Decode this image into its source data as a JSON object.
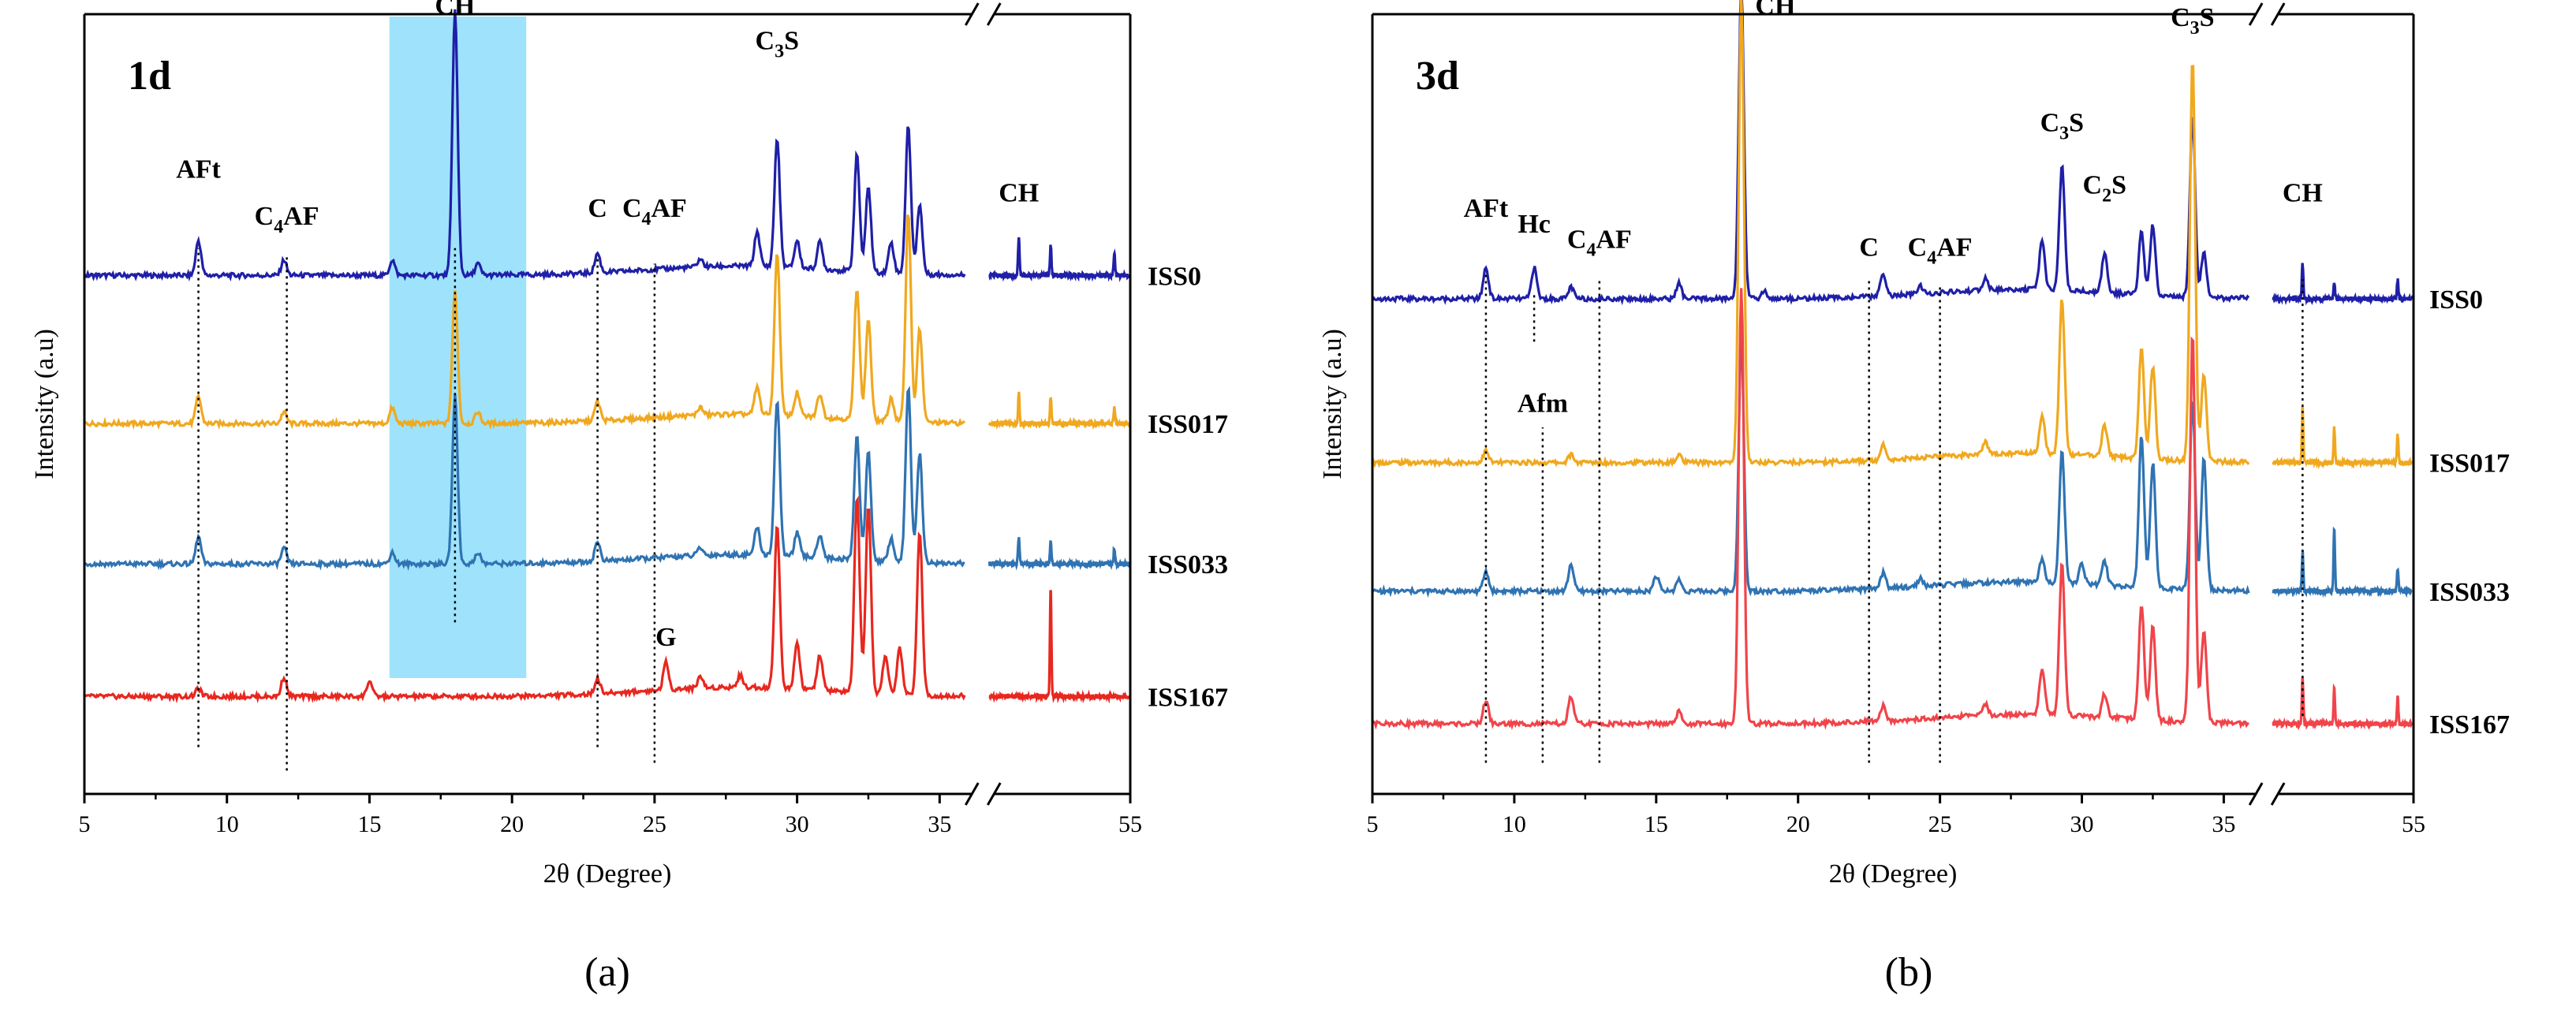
{
  "figure": {
    "panels": [
      "a",
      "b"
    ]
  },
  "chart_data": [
    {
      "type": "line",
      "panel_label": "1d",
      "caption": "(a)",
      "xlabel": "2θ (Degree)",
      "ylabel": "Intensity (a.u)",
      "x_ticks": [
        5,
        10,
        15,
        20,
        25,
        30,
        35,
        55
      ],
      "x_axis_break": [
        36,
        37
      ],
      "xlim": [
        5,
        55
      ],
      "ylim": [
        0,
        1
      ],
      "shaded_region": {
        "x_range": [
          15.7,
          20.5
        ],
        "color": "#9ee3fb"
      },
      "series": [
        {
          "name": "ISS0",
          "color": "#1f1fa8",
          "offset": 0.665,
          "peaks": [
            [
              9.0,
              0.045
            ],
            [
              12.0,
              0.02
            ],
            [
              15.8,
              0.02
            ],
            [
              18.0,
              0.34
            ],
            [
              18.8,
              0.015
            ],
            [
              23.0,
              0.025
            ],
            [
              26.6,
              0.01
            ],
            [
              28.6,
              0.045
            ],
            [
              29.3,
              0.165
            ],
            [
              30.0,
              0.035
            ],
            [
              30.8,
              0.035
            ],
            [
              32.1,
              0.15
            ],
            [
              32.5,
              0.11
            ],
            [
              33.3,
              0.04
            ],
            [
              33.9,
              0.19
            ],
            [
              34.3,
              0.09
            ],
            [
              41,
              0.05
            ],
            [
              45,
              0.04
            ],
            [
              53,
              0.03
            ]
          ]
        },
        {
          "name": "ISS017",
          "color": "#f0a81e",
          "offset": 0.475,
          "peaks": [
            [
              9.0,
              0.035
            ],
            [
              12.0,
              0.015
            ],
            [
              15.8,
              0.02
            ],
            [
              18.0,
              0.17
            ],
            [
              18.8,
              0.015
            ],
            [
              23.0,
              0.025
            ],
            [
              26.6,
              0.01
            ],
            [
              28.6,
              0.035
            ],
            [
              29.3,
              0.21
            ],
            [
              30.0,
              0.03
            ],
            [
              30.8,
              0.03
            ],
            [
              32.1,
              0.17
            ],
            [
              32.5,
              0.13
            ],
            [
              33.3,
              0.03
            ],
            [
              33.9,
              0.27
            ],
            [
              34.3,
              0.12
            ],
            [
              41,
              0.04
            ],
            [
              45,
              0.035
            ],
            [
              53,
              0.02
            ]
          ]
        },
        {
          "name": "ISS033",
          "color": "#2f73b3",
          "offset": 0.295,
          "peaks": [
            [
              9.0,
              0.035
            ],
            [
              12.0,
              0.02
            ],
            [
              15.8,
              0.015
            ],
            [
              18.0,
              0.215
            ],
            [
              18.8,
              0.015
            ],
            [
              23.0,
              0.025
            ],
            [
              26.6,
              0.01
            ],
            [
              28.6,
              0.035
            ],
            [
              29.3,
              0.2
            ],
            [
              30.0,
              0.03
            ],
            [
              30.8,
              0.03
            ],
            [
              32.1,
              0.16
            ],
            [
              32.5,
              0.14
            ],
            [
              33.3,
              0.03
            ],
            [
              33.9,
              0.225
            ],
            [
              34.3,
              0.14
            ],
            [
              41,
              0.035
            ],
            [
              45,
              0.03
            ],
            [
              53,
              0.02
            ]
          ]
        },
        {
          "name": "ISS167",
          "color": "#e8271f",
          "offset": 0.125,
          "peaks": [
            [
              9.0,
              0.01
            ],
            [
              12.0,
              0.025
            ],
            [
              15.0,
              0.02
            ],
            [
              23.0,
              0.02
            ],
            [
              25.4,
              0.035
            ],
            [
              26.6,
              0.015
            ],
            [
              28.0,
              0.015
            ],
            [
              29.3,
              0.21
            ],
            [
              30.0,
              0.06
            ],
            [
              30.8,
              0.045
            ],
            [
              32.1,
              0.25
            ],
            [
              32.5,
              0.24
            ],
            [
              33.1,
              0.05
            ],
            [
              33.6,
              0.06
            ],
            [
              34.3,
              0.21
            ],
            [
              45,
              0.14
            ]
          ]
        }
      ],
      "peak_labels": [
        {
          "text": "AFt",
          "x": 9.0,
          "y": 0.79,
          "guide": [
            0.06,
            0.7
          ]
        },
        {
          "text": "C4AF",
          "main": "C",
          "sub": "4",
          "tail": "AF",
          "x": 12.1,
          "y": 0.73,
          "guide": [
            0.03,
            0.69
          ]
        },
        {
          "text": "CH",
          "x": 18.0,
          "y": 1.0,
          "guide": [
            0.22,
            0.7
          ]
        },
        {
          "text": "C",
          "x": 23.0,
          "y": 0.74,
          "guide": [
            0.06,
            0.69
          ]
        },
        {
          "text": "C4AF",
          "main": "C",
          "sub": "4",
          "tail": "AF",
          "x": 25.0,
          "y": 0.74,
          "guide": [
            0.04,
            0.68
          ]
        },
        {
          "text": "C3S",
          "main": "C",
          "sub": "3",
          "tail": "S",
          "x": 29.3,
          "y": 0.955
        },
        {
          "text": "CH",
          "x": 41.0,
          "y": 0.76
        },
        {
          "text": "G",
          "x": 25.4,
          "y": 0.19
        }
      ]
    },
    {
      "type": "line",
      "panel_label": "3d",
      "caption": "(b)",
      "xlabel": "2θ (Degree)",
      "ylabel": "Intensity (a.u)",
      "x_ticks": [
        5,
        10,
        15,
        20,
        25,
        30,
        35,
        55
      ],
      "x_axis_break": [
        36,
        37
      ],
      "xlim": [
        5,
        55
      ],
      "ylim": [
        0,
        1
      ],
      "series": [
        {
          "name": "ISS0",
          "color": "#1f1fa8",
          "offset": 0.635,
          "peaks": [
            [
              9.0,
              0.04
            ],
            [
              10.7,
              0.04
            ],
            [
              12.0,
              0.015
            ],
            [
              15.8,
              0.02
            ],
            [
              18.0,
              0.4
            ],
            [
              18.8,
              0.01
            ],
            [
              23.0,
              0.03
            ],
            [
              24.3,
              0.01
            ],
            [
              26.6,
              0.015
            ],
            [
              28.6,
              0.065
            ],
            [
              29.3,
              0.16
            ],
            [
              30.8,
              0.05
            ],
            [
              32.1,
              0.08
            ],
            [
              32.5,
              0.09
            ],
            [
              33.9,
              0.235
            ],
            [
              34.3,
              0.06
            ],
            [
              41,
              0.045
            ],
            [
              45,
              0.02
            ],
            [
              53,
              0.025
            ]
          ]
        },
        {
          "name": "ISS017",
          "color": "#f0a81e",
          "offset": 0.425,
          "peaks": [
            [
              9.0,
              0.015
            ],
            [
              12.0,
              0.01
            ],
            [
              15.8,
              0.01
            ],
            [
              18.0,
              0.6
            ],
            [
              23.0,
              0.02
            ],
            [
              26.6,
              0.015
            ],
            [
              28.6,
              0.05
            ],
            [
              29.3,
              0.2
            ],
            [
              30.8,
              0.04
            ],
            [
              32.1,
              0.14
            ],
            [
              32.5,
              0.12
            ],
            [
              33.9,
              0.52
            ],
            [
              34.3,
              0.11
            ],
            [
              41,
              0.07
            ],
            [
              45,
              0.045
            ],
            [
              53,
              0.035
            ]
          ]
        },
        {
          "name": "ISS033",
          "color": "#2f73b3",
          "offset": 0.26,
          "peaks": [
            [
              9.0,
              0.025
            ],
            [
              12.0,
              0.035
            ],
            [
              15.0,
              0.02
            ],
            [
              15.8,
              0.015
            ],
            [
              18.0,
              0.32
            ],
            [
              23.0,
              0.02
            ],
            [
              24.3,
              0.01
            ],
            [
              28.6,
              0.03
            ],
            [
              29.3,
              0.17
            ],
            [
              30.0,
              0.025
            ],
            [
              30.8,
              0.03
            ],
            [
              32.1,
              0.195
            ],
            [
              32.5,
              0.16
            ],
            [
              33.9,
              0.245
            ],
            [
              34.3,
              0.17
            ],
            [
              41,
              0.05
            ],
            [
              45,
              0.08
            ],
            [
              53,
              0.03
            ]
          ]
        },
        {
          "name": "ISS167",
          "color": "#f0444a",
          "offset": 0.09,
          "peaks": [
            [
              9.0,
              0.03
            ],
            [
              12.0,
              0.035
            ],
            [
              15.8,
              0.015
            ],
            [
              18.0,
              0.56
            ],
            [
              23.0,
              0.02
            ],
            [
              26.6,
              0.015
            ],
            [
              28.6,
              0.06
            ],
            [
              29.3,
              0.195
            ],
            [
              30.8,
              0.03
            ],
            [
              32.1,
              0.15
            ],
            [
              32.5,
              0.12
            ],
            [
              33.9,
              0.5
            ],
            [
              34.3,
              0.12
            ],
            [
              41,
              0.06
            ],
            [
              45,
              0.045
            ],
            [
              53,
              0.035
            ]
          ]
        }
      ],
      "peak_labels": [
        {
          "text": "AFt",
          "x": 9.0,
          "y": 0.74,
          "guide": [
            0.04,
            0.67
          ]
        },
        {
          "text": "Hc",
          "x": 10.7,
          "y": 0.72,
          "guide": [
            0.58,
            0.64
          ]
        },
        {
          "text": "C4AF",
          "main": "C",
          "sub": "4",
          "tail": "AF",
          "x": 13.0,
          "y": 0.7,
          "guide": [
            0.04,
            0.66
          ]
        },
        {
          "text": "CH",
          "x": 19.2,
          "y": 1.0
        },
        {
          "text": "C",
          "x": 22.5,
          "y": 0.69,
          "guide": [
            0.04,
            0.66
          ]
        },
        {
          "text": "C4AF",
          "main": "C",
          "sub": "4",
          "tail": "AF",
          "x": 25.0,
          "y": 0.69,
          "guide": [
            0.04,
            0.65
          ]
        },
        {
          "text": "C3S",
          "main": "C",
          "sub": "3",
          "tail": "S",
          "x": 29.3,
          "y": 0.85
        },
        {
          "text": "C2S",
          "main": "C",
          "sub": "2",
          "tail": "S",
          "x": 30.8,
          "y": 0.77
        },
        {
          "text": "C3S",
          "main": "C",
          "sub": "3",
          "tail": "S",
          "x": 33.9,
          "y": 0.985
        },
        {
          "text": "CH",
          "x": 41.0,
          "y": 0.76,
          "guide": [
            0.1,
            0.66
          ]
        },
        {
          "text": "Afm",
          "x": 11.0,
          "y": 0.49,
          "guide": [
            0.04,
            0.47
          ]
        }
      ]
    }
  ]
}
